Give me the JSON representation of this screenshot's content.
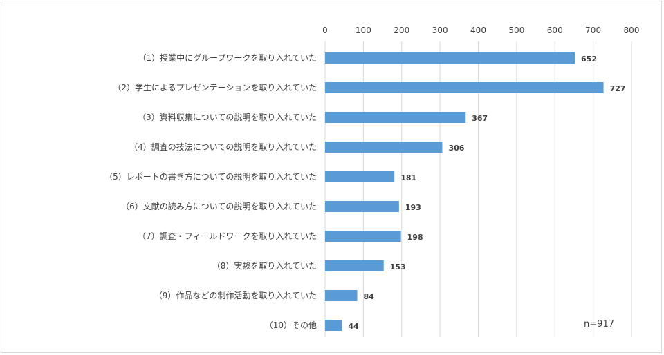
{
  "chart_data": {
    "type": "bar",
    "orientation": "horizontal",
    "categories": [
      "（1）授業中にグループワークを取り入れていた",
      "（2）学生によるプレゼンテーションを取り入れていた",
      "（3）資料収集についての説明を取り入れていた",
      "（4）調査の技法についての説明を取り入れていた",
      "（5）レポートの書き方についての説明を取り入れていた",
      "（6）文献の読み方についての説明を取り入れていた",
      "（7）調査・フィールドワークを取り入れていた",
      "（8）実験を取り入れていた",
      "（9）作品などの制作活動を取り入れていた",
      "（10）その他"
    ],
    "values": [
      652,
      727,
      367,
      306,
      181,
      193,
      198,
      153,
      84,
      44
    ],
    "data_labels": [
      "652",
      "727",
      "367",
      "306",
      "181",
      "193",
      "198",
      "153",
      "84",
      "44"
    ],
    "xlim": [
      0,
      800
    ],
    "ticks": [
      0,
      100,
      200,
      300,
      400,
      500,
      600,
      700,
      800
    ],
    "tick_labels": [
      "0",
      "100",
      "200",
      "300",
      "400",
      "500",
      "600",
      "700",
      "800"
    ],
    "axis_position": "top",
    "grid": true,
    "bar_color": "#5b9bd5",
    "grid_color": "#d9d9d9",
    "annotation": "n=917",
    "annotation_position": "bottom-right"
  }
}
